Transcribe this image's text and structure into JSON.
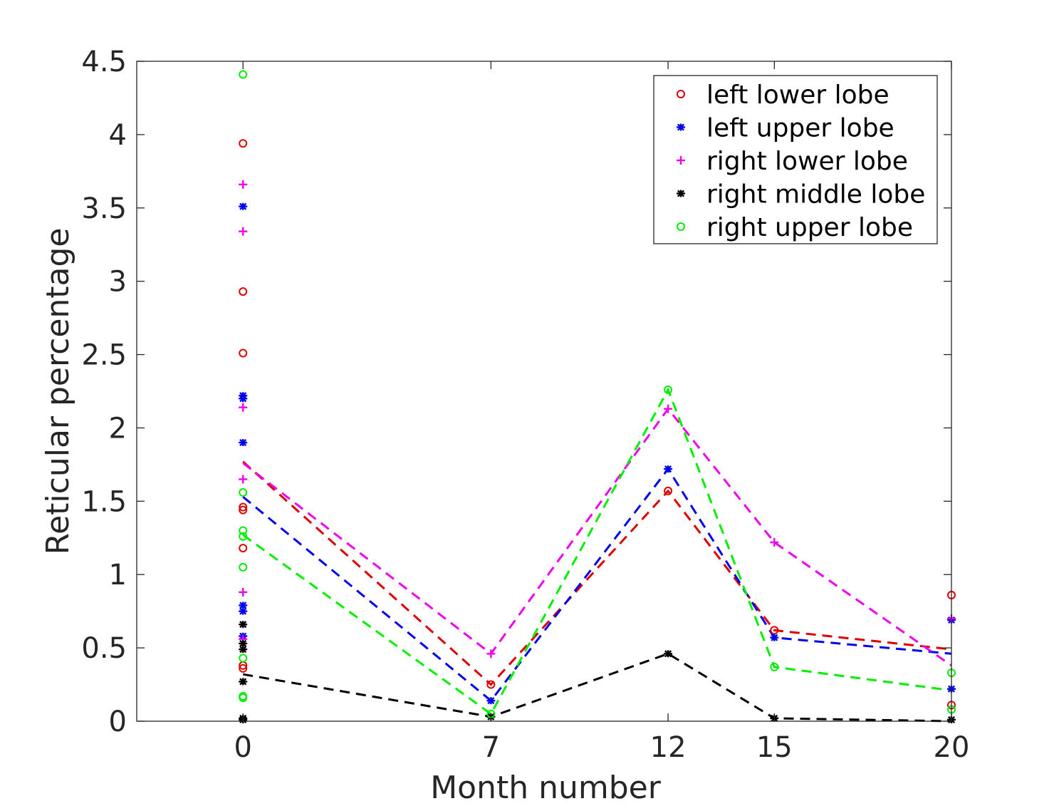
{
  "chart_data": {
    "type": "scatter",
    "xlabel": "Month number",
    "ylabel": "Reticular percentage",
    "xlim": [
      -3,
      20
    ],
    "ylim": [
      0,
      4.5
    ],
    "xticks": [
      0,
      7,
      12,
      15,
      20
    ],
    "yticks": [
      0,
      0.5,
      1,
      1.5,
      2,
      2.5,
      3,
      3.5,
      4,
      4.5
    ],
    "xtick_labels": [
      "0",
      "7",
      "12",
      "15",
      "20"
    ],
    "ytick_labels": [
      "0",
      "0.5",
      "1",
      "1.5",
      "2",
      "2.5",
      "3",
      "3.5",
      "4",
      "4.5"
    ],
    "grid": false,
    "legend_position": "top-right",
    "series": [
      {
        "name": "left lower lobe",
        "color": "#dd0000",
        "marker": "circle",
        "points": [
          [
            0,
            3.94
          ],
          [
            0,
            2.93
          ],
          [
            0,
            2.51
          ],
          [
            0,
            1.46
          ],
          [
            0,
            1.44
          ],
          [
            0,
            1.18
          ],
          [
            0,
            0.38
          ],
          [
            0,
            0.36
          ],
          [
            7,
            0.25
          ],
          [
            12,
            1.57
          ],
          [
            15,
            0.62
          ],
          [
            20,
            0.86
          ],
          [
            20,
            0.11
          ]
        ],
        "trend": [
          [
            0,
            1.77
          ],
          [
            7,
            0.25
          ],
          [
            12,
            1.57
          ],
          [
            15,
            0.62
          ],
          [
            20,
            0.49
          ]
        ]
      },
      {
        "name": "left upper lobe",
        "color": "#0000ee",
        "marker": "asterisk",
        "points": [
          [
            0,
            3.51
          ],
          [
            0,
            2.22
          ],
          [
            0,
            2.2
          ],
          [
            0,
            1.9
          ],
          [
            0,
            0.79
          ],
          [
            0,
            0.75
          ],
          [
            0,
            0.58
          ],
          [
            7,
            0.14
          ],
          [
            12,
            1.72
          ],
          [
            15,
            0.57
          ],
          [
            20,
            0.69
          ],
          [
            20,
            0.22
          ]
        ],
        "trend": [
          [
            0,
            1.53
          ],
          [
            7,
            0.14
          ],
          [
            12,
            1.72
          ],
          [
            15,
            0.57
          ],
          [
            20,
            0.46
          ]
        ]
      },
      {
        "name": "right lower lobe",
        "color": "#ee00ee",
        "marker": "plus",
        "points": [
          [
            0,
            3.66
          ],
          [
            0,
            3.34
          ],
          [
            0,
            2.14
          ],
          [
            0,
            1.65
          ],
          [
            0,
            0.88
          ],
          [
            0,
            0.56
          ],
          [
            7,
            0.46
          ],
          [
            12,
            2.13
          ],
          [
            15,
            1.22
          ],
          [
            20,
            0.7
          ]
        ],
        "trend": [
          [
            0,
            1.76
          ],
          [
            7,
            0.46
          ],
          [
            12,
            2.13
          ],
          [
            15,
            1.22
          ],
          [
            20,
            0.38
          ]
        ]
      },
      {
        "name": "right middle lobe",
        "color": "#000000",
        "marker": "asterisk",
        "points": [
          [
            0,
            0.66
          ],
          [
            0,
            0.53
          ],
          [
            0,
            0.49
          ],
          [
            0,
            0.27
          ],
          [
            0,
            0.02
          ],
          [
            0,
            0.01
          ],
          [
            7,
            0.03
          ],
          [
            12,
            0.46
          ],
          [
            15,
            0.02
          ],
          [
            20,
            0.01
          ]
        ],
        "trend": [
          [
            0,
            0.32
          ],
          [
            7,
            0.03
          ],
          [
            12,
            0.46
          ],
          [
            15,
            0.02
          ],
          [
            20,
            0.0
          ]
        ]
      },
      {
        "name": "right upper lobe",
        "color": "#00ee00",
        "marker": "circle",
        "points": [
          [
            0,
            4.41
          ],
          [
            0,
            1.56
          ],
          [
            0,
            1.3
          ],
          [
            0,
            1.26
          ],
          [
            0,
            1.05
          ],
          [
            0,
            0.43
          ],
          [
            0,
            0.17
          ],
          [
            0,
            0.16
          ],
          [
            7,
            0.05
          ],
          [
            12,
            2.26
          ],
          [
            15,
            0.37
          ],
          [
            20,
            0.33
          ],
          [
            20,
            0.08
          ]
        ],
        "trend": [
          [
            0,
            1.27
          ],
          [
            7,
            0.05
          ],
          [
            12,
            2.26
          ],
          [
            15,
            0.37
          ],
          [
            20,
            0.21
          ]
        ]
      }
    ]
  }
}
